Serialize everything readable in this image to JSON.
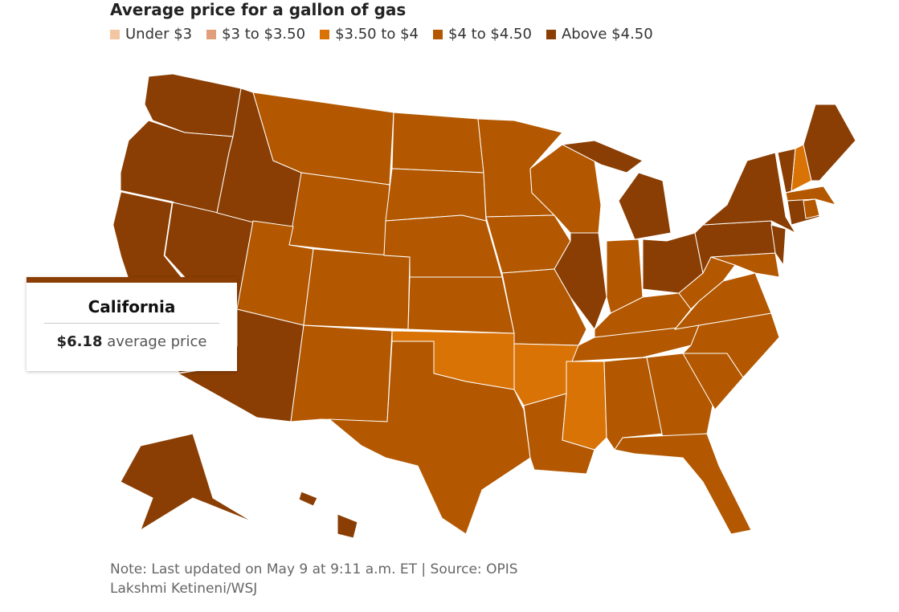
{
  "title": "Average price for a gallon of gas",
  "legend": [
    {
      "label": "Under $3",
      "color": "#f2c6a0"
    },
    {
      "label": "$3 to $3.50",
      "color": "#e09f7a"
    },
    {
      "label": "$3.50 to $4",
      "color": "#d97306"
    },
    {
      "label": "$4 to $4.50",
      "color": "#b35800"
    },
    {
      "label": "Above $4.50",
      "color": "#8a3e03"
    }
  ],
  "region_colors": [
    "#8a3e03",
    "#8a3e03",
    "#8a3e03",
    "#8a3e03",
    "#8a3e03",
    "#b35800",
    "#b35800",
    "#b35800",
    "#8a3e03",
    "#b35800",
    "#b35800",
    "#b35800",
    "#b35800",
    "#b35800",
    "#b35800",
    "#d97306",
    "#b35800",
    "#b35800",
    "#b35800",
    "#b35800",
    "#d97306",
    "#b35800",
    "#b35800",
    "#8a3e03",
    "#8a3e03",
    "#8a3e03",
    "#b35800",
    "#8a3e03",
    "#b35800",
    "#b35800",
    "#d97306",
    "#b35800",
    "#b35800",
    "#b35800",
    "#b35800",
    "#b35800",
    "#b35800",
    "#b35800",
    "#b35800",
    "#8a3e03",
    "#8a3e03",
    "#b35800",
    "#8a3e03",
    "#8a3e03",
    "#b35800",
    "#8a3e03",
    "#d97306",
    "#8a3e03",
    "#8a3e03",
    "#8a3e03",
    "#8a3e03"
  ],
  "tooltip": {
    "title": "California",
    "price": "$6.18",
    "text": "average price"
  },
  "note": "Note: Last updated on May 9 at 9:11 a.m. ET | Source: OPIS",
  "credit": "Lakshmi Ketineni/WSJ"
}
